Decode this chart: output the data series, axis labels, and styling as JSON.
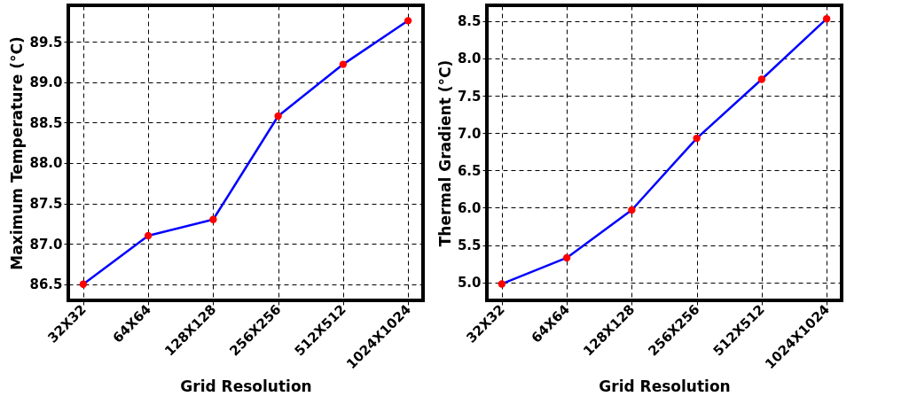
{
  "chart_data": [
    {
      "type": "line",
      "xlabel": "Grid Resolution",
      "ylabel": "Maximum Temperature (°C)",
      "categories": [
        "32X32",
        "64X64",
        "128X128",
        "256X256",
        "512X512",
        "1024X1024"
      ],
      "series": [
        {
          "color": "#0000ff",
          "values": [
            86.5,
            87.1,
            87.3,
            88.58,
            89.22,
            89.76
          ]
        }
      ],
      "colors": [
        "#ff0000",
        "#ff0000",
        "#ff0000",
        "#ff0000",
        "#ff0000",
        "#ff0000"
      ],
      "marker": "circle",
      "line_style": "solid",
      "grid": true,
      "ylim": [
        86.3,
        89.95
      ],
      "yticks": [
        86.5,
        {
          "value": 87,
          "label": "87.0"
        },
        87.5,
        {
          "value": 88,
          "label": "88.0"
        },
        88.5,
        {
          "value": 89,
          "label": "89.0"
        },
        89.5
      ]
    },
    {
      "type": "line",
      "xlabel": "Grid Resolution",
      "ylabel": "Thermal Gradient (°C)",
      "categories": [
        "32X32",
        "64X64",
        "128X128",
        "256X256",
        "512X512",
        "1024X1024"
      ],
      "series": [
        {
          "color": "#0000ff",
          "values": [
            4.98,
            5.33,
            5.97,
            6.93,
            7.72,
            8.53
          ]
        }
      ],
      "colors": [
        "#ff0000",
        "#ff0000",
        "#ff0000",
        "#ff0000",
        "#ff0000",
        "#ff0000"
      ],
      "marker": "circle",
      "line_style": "solid",
      "grid": true,
      "ylim": [
        4.76,
        8.71
      ],
      "yticks": [
        {
          "value": 5,
          "label": "5.0"
        },
        5.5,
        {
          "value": 6,
          "label": "6.0"
        },
        6.5,
        {
          "value": 7,
          "label": "7.0"
        },
        7.5,
        {
          "value": 8,
          "label": "8.0"
        },
        8.5
      ]
    }
  ]
}
